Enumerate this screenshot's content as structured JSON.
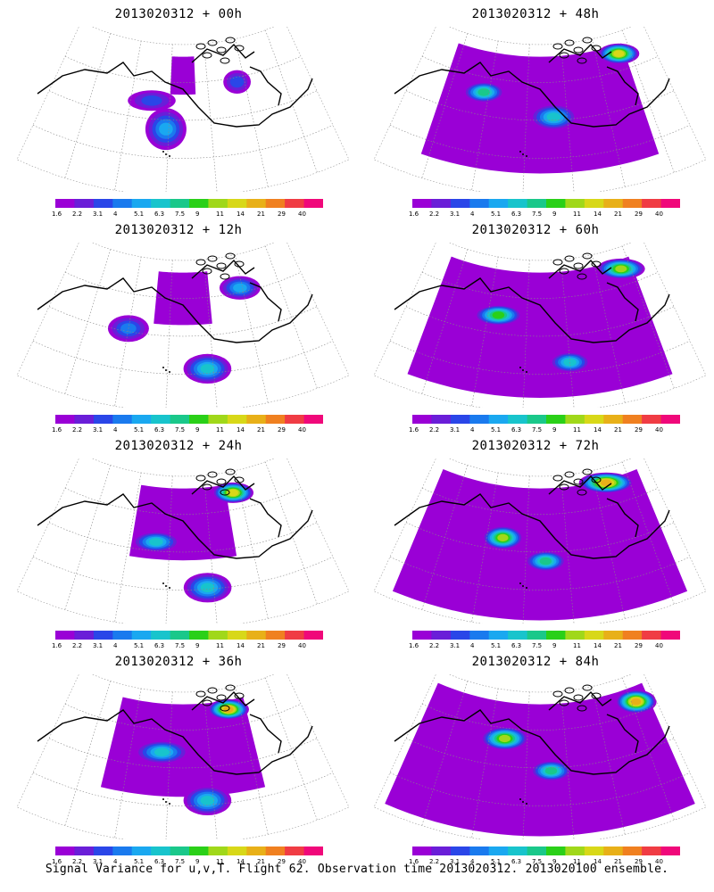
{
  "colorbar": {
    "labels": [
      "1.6",
      "2.2",
      "3.1",
      "4",
      "5.1",
      "6.3",
      "7.5",
      "9",
      "11",
      "14",
      "21",
      "29",
      "40"
    ],
    "colors": [
      "#9a00d6",
      "#6a1ed8",
      "#2a46e8",
      "#1a7aee",
      "#1aa8f0",
      "#18c4cc",
      "#1ac88a",
      "#2ad018",
      "#a0d81a",
      "#d8d818",
      "#e8b018",
      "#f08020",
      "#f03c44",
      "#f0087a"
    ]
  },
  "panels": [
    {
      "title": "2013020312 + 00h",
      "coverage": 0.1,
      "blobs": [
        [
          0.38,
          0.38,
          0.06,
          0.05,
          2
        ],
        [
          0.44,
          0.56,
          0.05,
          0.12,
          4
        ],
        [
          0.72,
          0.28,
          0.03,
          0.06,
          2
        ]
      ]
    },
    {
      "title": "2013020312 + 48h",
      "coverage": 0.75,
      "blobs": [
        [
          0.28,
          0.35,
          0.05,
          0.05,
          6
        ],
        [
          0.55,
          0.48,
          0.06,
          0.07,
          5
        ],
        [
          0.85,
          0.14,
          0.05,
          0.05,
          9
        ]
      ]
    },
    {
      "title": "2013020312 + 12h",
      "coverage": 0.22,
      "blobs": [
        [
          0.3,
          0.48,
          0.05,
          0.07,
          3
        ],
        [
          0.58,
          0.72,
          0.06,
          0.08,
          5
        ],
        [
          0.74,
          0.22,
          0.05,
          0.06,
          4
        ]
      ]
    },
    {
      "title": "2013020312 + 60h",
      "coverage": 0.82,
      "blobs": [
        [
          0.34,
          0.38,
          0.06,
          0.05,
          7
        ],
        [
          0.6,
          0.68,
          0.05,
          0.05,
          5
        ],
        [
          0.86,
          0.14,
          0.06,
          0.05,
          8
        ]
      ]
    },
    {
      "title": "2013020312 + 24h",
      "coverage": 0.38,
      "blobs": [
        [
          0.4,
          0.44,
          0.06,
          0.05,
          5
        ],
        [
          0.58,
          0.74,
          0.06,
          0.08,
          5
        ],
        [
          0.72,
          0.14,
          0.05,
          0.05,
          9
        ]
      ]
    },
    {
      "title": "2013020312 + 72h",
      "coverage": 0.9,
      "blobs": [
        [
          0.36,
          0.42,
          0.05,
          0.06,
          8
        ],
        [
          0.52,
          0.56,
          0.05,
          0.05,
          6
        ],
        [
          0.8,
          0.1,
          0.07,
          0.05,
          10
        ]
      ]
    },
    {
      "title": "2013020312 + 36h",
      "coverage": 0.55,
      "blobs": [
        [
          0.42,
          0.4,
          0.07,
          0.06,
          5
        ],
        [
          0.58,
          0.72,
          0.06,
          0.08,
          5
        ],
        [
          0.7,
          0.14,
          0.05,
          0.05,
          10
        ]
      ]
    },
    {
      "title": "2013020312 + 84h",
      "coverage": 0.95,
      "blobs": [
        [
          0.36,
          0.32,
          0.06,
          0.06,
          8
        ],
        [
          0.54,
          0.52,
          0.05,
          0.05,
          6
        ],
        [
          0.92,
          0.18,
          0.05,
          0.06,
          10
        ]
      ]
    }
  ],
  "caption": "Signal Variance for u,v,T. Flight 62. Observation time 2013020312. 2013020100 ensemble."
}
